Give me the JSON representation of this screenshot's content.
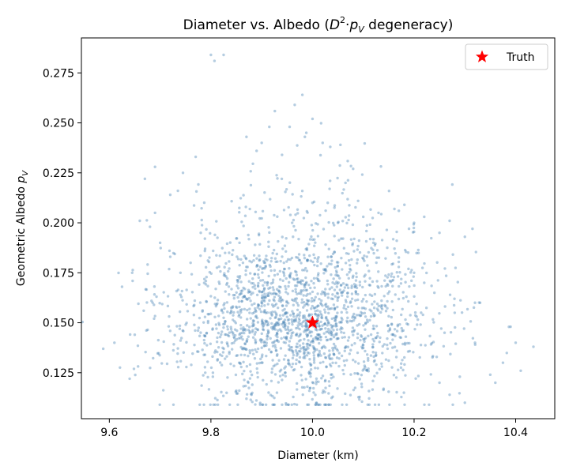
{
  "chart_data": {
    "type": "scatter",
    "title_main": "Diameter vs. Albedo (",
    "title_math_base": "D",
    "title_math_exp": "2",
    "title_math_op": "·",
    "title_math_var": "p",
    "title_math_sub": "V",
    "title_tail": " degeneracy)",
    "xlabel": "Diameter (km)",
    "ylabel_main": "Geometric Albedo ",
    "ylabel_var": "p",
    "ylabel_sub": "V",
    "xlim": [
      9.545,
      10.477
    ],
    "ylim": [
      0.102,
      0.2925
    ],
    "xticks": [
      9.6,
      9.8,
      10.0,
      10.2,
      10.4
    ],
    "xtick_labels": [
      "9.6",
      "9.8",
      "10.0",
      "10.2",
      "10.4"
    ],
    "yticks": [
      0.125,
      0.15,
      0.175,
      0.2,
      0.225,
      0.25,
      0.275
    ],
    "ytick_labels": [
      "0.125",
      "0.150",
      "0.175",
      "0.200",
      "0.225",
      "0.250",
      "0.275"
    ],
    "grid": false,
    "legend_position": "top-right",
    "series": [
      {
        "name": "",
        "color": "#4682b4",
        "alpha": 0.4,
        "marker": "circle",
        "point_count": 2000,
        "center_x": 9.975,
        "center_y": 0.152,
        "spread_x": 0.13,
        "spread_y": 0.025,
        "distribution": "Gaussian cloud in diameter, albedo skewed upward (approximately constant D^2*pV)",
        "sample_points": [
          [
            9.8,
            0.284
          ],
          [
            9.807,
            0.281
          ],
          [
            9.825,
            0.284
          ],
          [
            9.98,
            0.264
          ],
          [
            9.965,
            0.259
          ],
          [
            10.0,
            0.252
          ],
          [
            9.915,
            0.248
          ],
          [
            9.955,
            0.248
          ],
          [
            9.87,
            0.243
          ],
          [
            9.985,
            0.243
          ],
          [
            9.9,
            0.24
          ],
          [
            10.02,
            0.24
          ],
          [
            10.035,
            0.238
          ],
          [
            9.89,
            0.236
          ],
          [
            9.94,
            0.234
          ],
          [
            9.77,
            0.233
          ],
          [
            9.745,
            0.225
          ],
          [
            9.69,
            0.228
          ],
          [
            9.67,
            0.222
          ],
          [
            9.735,
            0.216
          ],
          [
            9.72,
            0.214
          ],
          [
            9.69,
            0.205
          ],
          [
            9.68,
            0.198
          ],
          [
            9.66,
            0.201
          ],
          [
            9.625,
            0.168
          ],
          [
            9.645,
            0.175
          ],
          [
            9.65,
            0.144
          ],
          [
            9.61,
            0.14
          ],
          [
            9.588,
            0.137
          ],
          [
            9.64,
            0.122
          ],
          [
            9.85,
            0.116
          ],
          [
            9.87,
            0.112
          ],
          [
            9.88,
            0.114
          ],
          [
            9.93,
            0.115
          ],
          [
            10.02,
            0.115
          ],
          [
            10.04,
            0.113
          ],
          [
            10.14,
            0.117
          ],
          [
            10.18,
            0.115
          ],
          [
            10.25,
            0.12
          ],
          [
            10.27,
            0.114
          ],
          [
            10.3,
            0.11
          ],
          [
            10.29,
            0.123
          ],
          [
            10.35,
            0.124
          ],
          [
            10.36,
            0.12
          ],
          [
            10.375,
            0.13
          ],
          [
            10.32,
            0.14
          ],
          [
            10.41,
            0.126
          ],
          [
            10.4,
            0.14
          ],
          [
            10.39,
            0.148
          ],
          [
            10.435,
            0.138
          ],
          [
            10.32,
            0.16
          ],
          [
            10.33,
            0.16
          ],
          [
            10.315,
            0.197
          ],
          [
            10.3,
            0.193
          ],
          [
            10.27,
            0.201
          ],
          [
            10.25,
            0.195
          ],
          [
            10.22,
            0.203
          ],
          [
            10.2,
            0.2
          ],
          [
            10.19,
            0.197
          ],
          [
            10.17,
            0.206
          ],
          [
            10.13,
            0.205
          ],
          [
            10.1,
            0.203
          ],
          [
            10.08,
            0.227
          ],
          [
            10.065,
            0.22
          ],
          [
            10.055,
            0.239
          ],
          [
            10.03,
            0.21
          ],
          [
            10.0,
            0.21
          ],
          [
            9.96,
            0.2
          ],
          [
            10.05,
            0.2
          ],
          [
            10.12,
            0.19
          ],
          [
            10.2,
            0.175
          ],
          [
            10.22,
            0.17
          ],
          [
            10.24,
            0.165
          ],
          [
            10.28,
            0.155
          ],
          [
            10.26,
            0.145
          ],
          [
            9.7,
            0.19
          ],
          [
            9.72,
            0.183
          ],
          [
            9.74,
            0.175
          ],
          [
            9.76,
            0.18
          ],
          [
            9.78,
            0.195
          ]
        ]
      },
      {
        "name": "Truth",
        "color": "#ff0000",
        "marker": "star",
        "points": [
          [
            10.0,
            0.15
          ]
        ]
      }
    ]
  }
}
